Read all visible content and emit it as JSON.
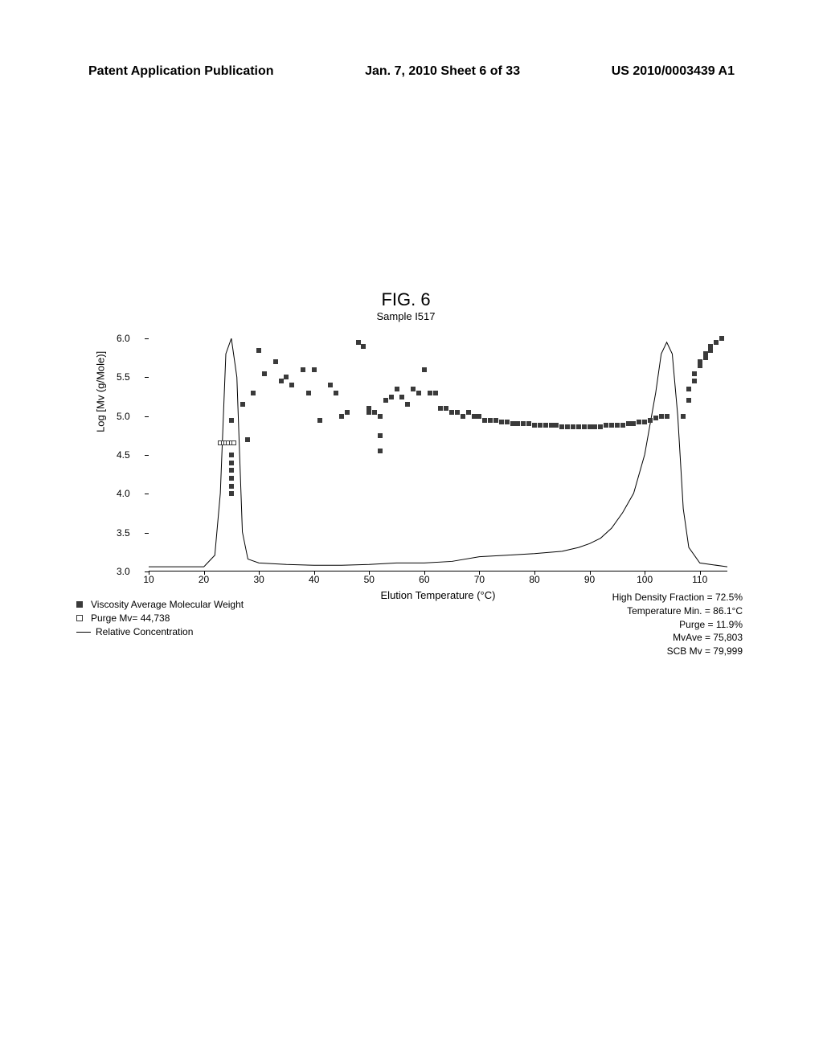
{
  "header": {
    "left": "Patent Application Publication",
    "center": "Jan. 7, 2010  Sheet 6 of 33",
    "right": "US 2010/0003439 A1"
  },
  "figure": {
    "title": "FIG. 6",
    "subtitle": "Sample I517",
    "yLabel": "Log [Mv (g/Mole)]",
    "xLabel": "Elution Temperature (°C)",
    "xlim": [
      10,
      115
    ],
    "ylim": [
      3.0,
      6.0
    ],
    "yTicks": [
      "3.0",
      "3.5",
      "4.0",
      "4.5",
      "5.0",
      "5.5",
      "6.0"
    ],
    "xTicks": [
      "10",
      "20",
      "30",
      "40",
      "50",
      "60",
      "70",
      "80",
      "90",
      "100",
      "110"
    ],
    "viscosity_points": [
      {
        "x": 25,
        "y": 4.0
      },
      {
        "x": 25,
        "y": 4.1
      },
      {
        "x": 25,
        "y": 4.2
      },
      {
        "x": 25,
        "y": 4.3
      },
      {
        "x": 25,
        "y": 4.4
      },
      {
        "x": 25,
        "y": 4.5
      },
      {
        "x": 25,
        "y": 4.95
      },
      {
        "x": 27,
        "y": 5.15
      },
      {
        "x": 28,
        "y": 4.7
      },
      {
        "x": 29,
        "y": 5.3
      },
      {
        "x": 30,
        "y": 5.85
      },
      {
        "x": 31,
        "y": 5.55
      },
      {
        "x": 33,
        "y": 5.7
      },
      {
        "x": 34,
        "y": 5.45
      },
      {
        "x": 35,
        "y": 5.5
      },
      {
        "x": 36,
        "y": 5.4
      },
      {
        "x": 38,
        "y": 5.6
      },
      {
        "x": 39,
        "y": 5.3
      },
      {
        "x": 40,
        "y": 5.6
      },
      {
        "x": 41,
        "y": 4.95
      },
      {
        "x": 43,
        "y": 5.4
      },
      {
        "x": 44,
        "y": 5.3
      },
      {
        "x": 45,
        "y": 5.0
      },
      {
        "x": 46,
        "y": 5.05
      },
      {
        "x": 48,
        "y": 5.95
      },
      {
        "x": 49,
        "y": 5.9
      },
      {
        "x": 50,
        "y": 5.1
      },
      {
        "x": 50,
        "y": 5.05
      },
      {
        "x": 51,
        "y": 5.05
      },
      {
        "x": 52,
        "y": 5.0
      },
      {
        "x": 52,
        "y": 4.75
      },
      {
        "x": 52,
        "y": 4.55
      },
      {
        "x": 53,
        "y": 5.2
      },
      {
        "x": 54,
        "y": 5.25
      },
      {
        "x": 55,
        "y": 5.35
      },
      {
        "x": 56,
        "y": 5.25
      },
      {
        "x": 57,
        "y": 5.15
      },
      {
        "x": 58,
        "y": 5.35
      },
      {
        "x": 59,
        "y": 5.3
      },
      {
        "x": 60,
        "y": 5.6
      },
      {
        "x": 61,
        "y": 5.3
      },
      {
        "x": 62,
        "y": 5.3
      },
      {
        "x": 63,
        "y": 5.1
      },
      {
        "x": 64,
        "y": 5.1
      },
      {
        "x": 65,
        "y": 5.05
      },
      {
        "x": 66,
        "y": 5.05
      },
      {
        "x": 67,
        "y": 5.0
      },
      {
        "x": 68,
        "y": 5.05
      },
      {
        "x": 69,
        "y": 5.0
      },
      {
        "x": 70,
        "y": 5.0
      },
      {
        "x": 71,
        "y": 4.95
      },
      {
        "x": 72,
        "y": 4.95
      },
      {
        "x": 73,
        "y": 4.95
      },
      {
        "x": 74,
        "y": 4.92
      },
      {
        "x": 75,
        "y": 4.92
      },
      {
        "x": 76,
        "y": 4.9
      },
      {
        "x": 77,
        "y": 4.9
      },
      {
        "x": 78,
        "y": 4.9
      },
      {
        "x": 79,
        "y": 4.9
      },
      {
        "x": 80,
        "y": 4.88
      },
      {
        "x": 81,
        "y": 4.88
      },
      {
        "x": 82,
        "y": 4.88
      },
      {
        "x": 83,
        "y": 4.88
      },
      {
        "x": 84,
        "y": 4.88
      },
      {
        "x": 85,
        "y": 4.86
      },
      {
        "x": 86,
        "y": 4.86
      },
      {
        "x": 87,
        "y": 4.86
      },
      {
        "x": 88,
        "y": 4.86
      },
      {
        "x": 89,
        "y": 4.86
      },
      {
        "x": 90,
        "y": 4.86
      },
      {
        "x": 91,
        "y": 4.86
      },
      {
        "x": 92,
        "y": 4.86
      },
      {
        "x": 93,
        "y": 4.88
      },
      {
        "x": 94,
        "y": 4.88
      },
      {
        "x": 95,
        "y": 4.88
      },
      {
        "x": 96,
        "y": 4.88
      },
      {
        "x": 97,
        "y": 4.9
      },
      {
        "x": 98,
        "y": 4.9
      },
      {
        "x": 99,
        "y": 4.92
      },
      {
        "x": 100,
        "y": 4.92
      },
      {
        "x": 101,
        "y": 4.95
      },
      {
        "x": 102,
        "y": 4.98
      },
      {
        "x": 103,
        "y": 5.0
      },
      {
        "x": 104,
        "y": 5.0
      },
      {
        "x": 107,
        "y": 5.0
      },
      {
        "x": 108,
        "y": 5.2
      },
      {
        "x": 108,
        "y": 5.35
      },
      {
        "x": 109,
        "y": 5.45
      },
      {
        "x": 109,
        "y": 5.55
      },
      {
        "x": 110,
        "y": 5.65
      },
      {
        "x": 110,
        "y": 5.7
      },
      {
        "x": 111,
        "y": 5.75
      },
      {
        "x": 111,
        "y": 5.8
      },
      {
        "x": 112,
        "y": 5.85
      },
      {
        "x": 112,
        "y": 5.9
      },
      {
        "x": 113,
        "y": 5.95
      },
      {
        "x": 113,
        "y": 5.95
      },
      {
        "x": 114,
        "y": 6.0
      }
    ],
    "purge_points": [
      {
        "x": 23,
        "y": 4.66
      },
      {
        "x": 23.5,
        "y": 4.66
      },
      {
        "x": 24,
        "y": 4.66
      },
      {
        "x": 24.5,
        "y": 4.66
      },
      {
        "x": 25,
        "y": 4.66
      },
      {
        "x": 25.5,
        "y": 4.66
      }
    ],
    "curve": [
      {
        "x": 10,
        "y": 3.05
      },
      {
        "x": 20,
        "y": 3.05
      },
      {
        "x": 22,
        "y": 3.2
      },
      {
        "x": 23,
        "y": 4.0
      },
      {
        "x": 24,
        "y": 5.8
      },
      {
        "x": 25,
        "y": 6.0
      },
      {
        "x": 26,
        "y": 5.5
      },
      {
        "x": 27,
        "y": 3.5
      },
      {
        "x": 28,
        "y": 3.15
      },
      {
        "x": 30,
        "y": 3.1
      },
      {
        "x": 35,
        "y": 3.08
      },
      {
        "x": 40,
        "y": 3.07
      },
      {
        "x": 45,
        "y": 3.07
      },
      {
        "x": 50,
        "y": 3.08
      },
      {
        "x": 55,
        "y": 3.1
      },
      {
        "x": 60,
        "y": 3.1
      },
      {
        "x": 65,
        "y": 3.12
      },
      {
        "x": 70,
        "y": 3.18
      },
      {
        "x": 75,
        "y": 3.2
      },
      {
        "x": 80,
        "y": 3.22
      },
      {
        "x": 85,
        "y": 3.25
      },
      {
        "x": 88,
        "y": 3.3
      },
      {
        "x": 90,
        "y": 3.35
      },
      {
        "x": 92,
        "y": 3.42
      },
      {
        "x": 94,
        "y": 3.55
      },
      {
        "x": 96,
        "y": 3.75
      },
      {
        "x": 98,
        "y": 4.0
      },
      {
        "x": 100,
        "y": 4.5
      },
      {
        "x": 102,
        "y": 5.3
      },
      {
        "x": 103,
        "y": 5.8
      },
      {
        "x": 104,
        "y": 5.95
      },
      {
        "x": 105,
        "y": 5.8
      },
      {
        "x": 106,
        "y": 5.0
      },
      {
        "x": 107,
        "y": 3.8
      },
      {
        "x": 108,
        "y": 3.3
      },
      {
        "x": 110,
        "y": 3.1
      },
      {
        "x": 115,
        "y": 3.05
      }
    ]
  },
  "legend": {
    "viscosity": "Viscosity Average Molecular Weight",
    "purge": "Purge Mv= 44,738",
    "relative": "Relative Concentration"
  },
  "stats": {
    "hdf": "High Density Fraction = 72.5%",
    "tmin": "Temperature Min. = 86.1°C",
    "purge": "Purge = 11.9%",
    "mvave": "MvAve = 75,803",
    "scbmv": "SCB Mv = 79,999"
  }
}
